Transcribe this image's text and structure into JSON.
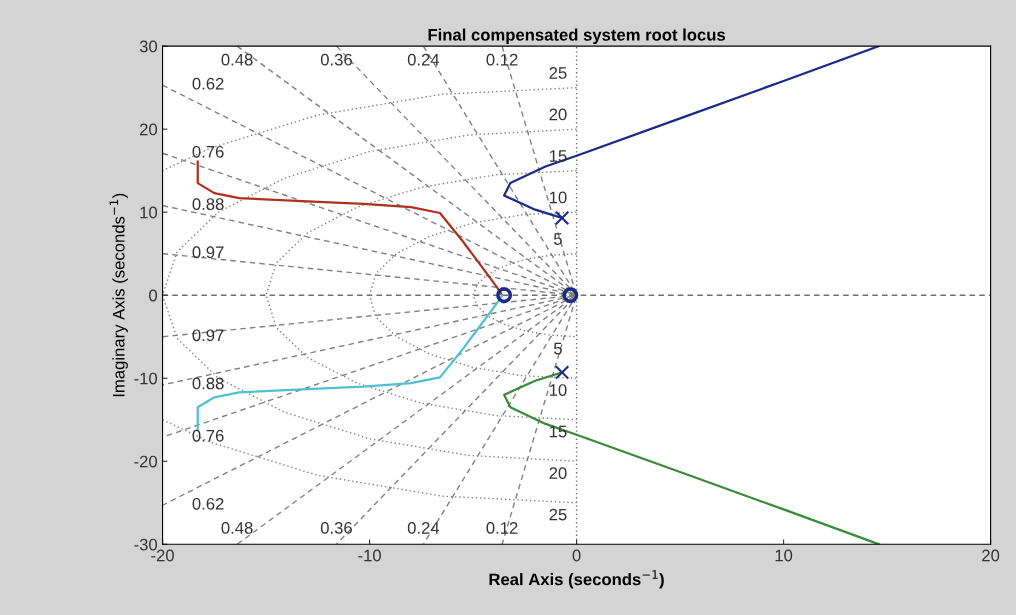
{
  "chart_data": {
    "type": "line",
    "title": "Final compensated system root locus",
    "xlabel": "Real Axis (seconds$^{−1}$)",
    "ylabel": "Imaginary Axis (seconds$^{−1}$)",
    "xlim": [
      -20,
      20
    ],
    "ylim": [
      -30,
      30
    ],
    "xticks": [
      -20,
      -10,
      0,
      10,
      20
    ],
    "yticks": [
      -30,
      -20,
      -10,
      0,
      10,
      20,
      30
    ],
    "grid": false,
    "legend": false,
    "ref_lines": [
      {
        "axis": "y",
        "value": 0,
        "color": "#707070",
        "line_style": "dashed"
      },
      {
        "axis": "x",
        "value": 0,
        "color": "#707070",
        "line_style": "dotted"
      }
    ],
    "series": [
      {
        "type": "line",
        "name": "0.12",
        "color": "#808080",
        "line_style": "dashed",
        "x": [
          -3.6,
          0,
          -3.6
        ],
        "values": [
          30,
          0,
          -30
        ]
      },
      {
        "type": "line",
        "name": "0.24",
        "color": "#808080",
        "line_style": "dashed",
        "x": [
          -7.4,
          0,
          -7.4
        ],
        "values": [
          30,
          0,
          -30
        ]
      },
      {
        "type": "line",
        "name": "0.36",
        "color": "#808080",
        "line_style": "dashed",
        "x": [
          -11.6,
          0,
          -11.6
        ],
        "values": [
          30,
          0,
          -30
        ]
      },
      {
        "type": "line",
        "name": "0.48",
        "color": "#808080",
        "line_style": "dashed",
        "x": [
          -16.4,
          0,
          -16.4
        ],
        "values": [
          30,
          0,
          -30
        ]
      },
      {
        "type": "line",
        "name": "0.62",
        "color": "#808080",
        "line_style": "dashed",
        "x": [
          -20,
          0,
          -20
        ],
        "values": [
          25.3,
          0,
          -25.3
        ]
      },
      {
        "type": "line",
        "name": "0.76",
        "color": "#808080",
        "line_style": "dashed",
        "x": [
          -20,
          0,
          -20
        ],
        "values": [
          17.1,
          0,
          -17.1
        ]
      },
      {
        "type": "line",
        "name": "0.88",
        "color": "#808080",
        "line_style": "dashed",
        "x": [
          -20,
          0,
          -20
        ],
        "values": [
          10.8,
          0,
          -10.8
        ]
      },
      {
        "type": "line",
        "name": "0.97",
        "color": "#808080",
        "line_style": "dashed",
        "x": [
          -20,
          0,
          -20
        ],
        "values": [
          5,
          0,
          -5
        ]
      },
      {
        "type": "line",
        "name": "5",
        "color": "#808080",
        "line_style": "dotted",
        "x": [
          0,
          -1.3,
          -2.5,
          -3.5,
          -4.3,
          -4.8,
          -5,
          -4.8,
          -4.3,
          -3.5,
          -2.5,
          -1.3,
          0
        ],
        "values": [
          5,
          4.8,
          4.3,
          3.5,
          2.5,
          1.3,
          0,
          -1.3,
          -2.5,
          -3.5,
          -4.3,
          -4.8,
          -5
        ]
      },
      {
        "type": "line",
        "name": "10",
        "color": "#808080",
        "line_style": "dotted",
        "x": [
          0,
          -2.6,
          -5,
          -7.1,
          -8.7,
          -9.7,
          -10,
          -9.7,
          -8.7,
          -7.1,
          -5,
          -2.6,
          0
        ],
        "values": [
          10,
          9.7,
          8.7,
          7.1,
          5,
          2.6,
          0,
          -2.6,
          -5,
          -7.1,
          -8.7,
          -9.7,
          -10
        ]
      },
      {
        "type": "line",
        "name": "15",
        "color": "#808080",
        "line_style": "dotted",
        "x": [
          0,
          -3.9,
          -7.5,
          -10.6,
          -13,
          -14.5,
          -15,
          -14.5,
          -13,
          -10.6,
          -7.5,
          -3.9,
          0
        ],
        "values": [
          15,
          14.5,
          13,
          10.6,
          7.5,
          3.9,
          0,
          -3.9,
          -7.5,
          -10.6,
          -13,
          -14.5,
          -15
        ]
      },
      {
        "type": "line",
        "name": "20",
        "color": "#808080",
        "line_style": "dotted",
        "x": [
          0,
          -5.2,
          -10,
          -14.1,
          -17.3,
          -19.3,
          -20,
          -19.3,
          -17.3,
          -14.1,
          -10,
          -5.2,
          0
        ],
        "values": [
          20,
          19.3,
          17.3,
          14.1,
          10,
          5.2,
          0,
          -5.2,
          -10,
          -14.1,
          -17.3,
          -19.3,
          -20
        ]
      },
      {
        "type": "line",
        "name": "25",
        "color": "#808080",
        "line_style": "dotted",
        "x": [
          0,
          -6.5,
          -12.5,
          -17.7,
          -20,
          null,
          -20,
          -17.7,
          -12.5,
          -6.5,
          0
        ],
        "values": [
          25,
          24.2,
          21.7,
          17.7,
          15,
          null,
          -15,
          -17.7,
          -21.7,
          -24.2,
          -25
        ]
      },
      {
        "type": "line",
        "color": "#b03020",
        "line_style": "solid",
        "x": [
          -18.3,
          -18.3,
          -17.5,
          -16.3,
          -13,
          -10.3,
          -8,
          -6.6,
          -5.5,
          -4.6,
          -3.8,
          -3.6
        ],
        "values": [
          16.1,
          13.5,
          12.3,
          11.7,
          11.3,
          11,
          10.6,
          9.9,
          6.5,
          3.5,
          0.8,
          0
        ]
      },
      {
        "type": "line",
        "color": "#50c0d0",
        "line_style": "solid",
        "x": [
          -18.3,
          -18.3,
          -17.5,
          -16.3,
          -13,
          -10.3,
          -8,
          -6.6,
          -5.5,
          -4.6,
          -3.8,
          -3.6
        ],
        "values": [
          -16.1,
          -13.5,
          -12.3,
          -11.7,
          -11.3,
          -11,
          -10.6,
          -9.9,
          -6.5,
          -3.5,
          -0.8,
          0
        ]
      },
      {
        "type": "line",
        "color": "#1a2a8a",
        "line_style": "solid",
        "x": [
          -0.7,
          -2,
          -3.5,
          -3.2,
          -1.5,
          0,
          5,
          10,
          14.6
        ],
        "values": [
          9.3,
          10.3,
          12,
          13.5,
          15.5,
          16.8,
          21.3,
          25.8,
          30
        ]
      },
      {
        "type": "line",
        "color": "#3a8a3a",
        "line_style": "solid",
        "x": [
          -0.7,
          -2,
          -3.5,
          -3.2,
          -1.5,
          0,
          5,
          10,
          14.6
        ],
        "values": [
          -9.3,
          -10.3,
          -12,
          -13.5,
          -15.5,
          -16.8,
          -21.3,
          -25.8,
          -30
        ]
      },
      {
        "type": "scatter",
        "color": "#1a2a8a",
        "marker": "cross",
        "x": [
          -0.7,
          -0.7
        ],
        "values": [
          9.3,
          -9.3
        ]
      },
      {
        "type": "scatter",
        "color": "#1a2a8a",
        "marker": "circle",
        "x": [
          -3.5,
          -0.3
        ],
        "values": [
          0,
          0
        ]
      }
    ]
  }
}
